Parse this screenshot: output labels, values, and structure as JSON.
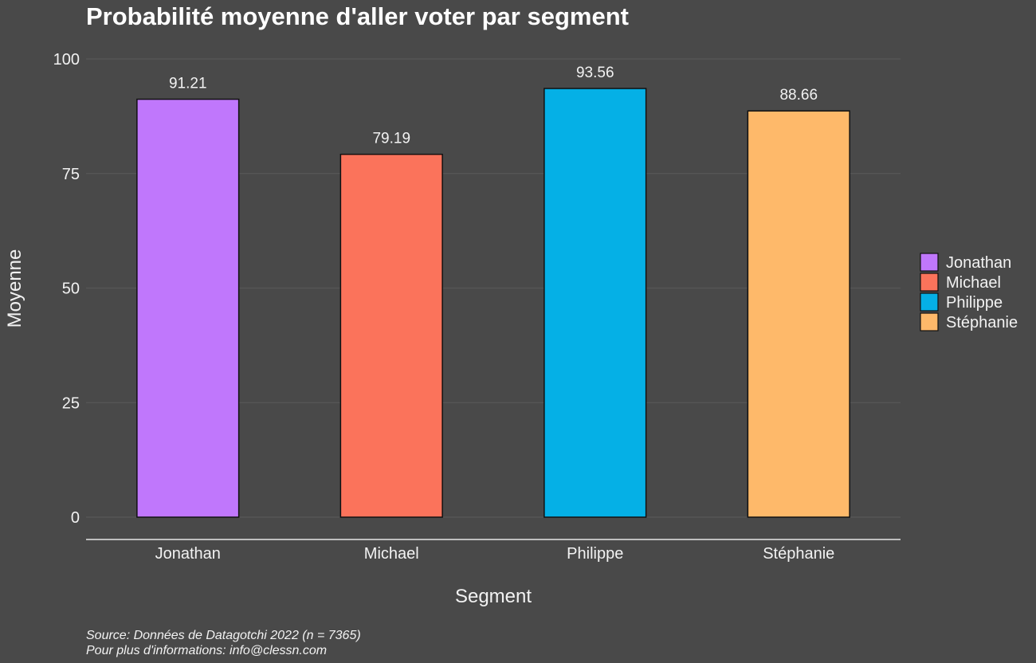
{
  "chart_data": {
    "type": "bar",
    "title": "Probabilité moyenne d'aller voter par segment",
    "xlabel": "Segment",
    "ylabel": "Moyenne",
    "categories": [
      "Jonathan",
      "Michael",
      "Philippe",
      "Stéphanie"
    ],
    "values": [
      91.21,
      79.19,
      93.56,
      88.66
    ],
    "data_labels": [
      "91.21",
      "79.19",
      "93.56",
      "88.66"
    ],
    "colors": [
      "#C077FC",
      "#FB735B",
      "#05B0E6",
      "#FEB96A"
    ],
    "ylim": [
      0,
      100
    ],
    "yticks": [
      0,
      25,
      50,
      75,
      100
    ],
    "grid": true,
    "legend": {
      "placement": "right",
      "entries": [
        "Jonathan",
        "Michael",
        "Philippe",
        "Stéphanie"
      ]
    }
  },
  "caption": {
    "line1": "Source: Données de Datagotchi 2022 (n = 7365)",
    "line2": "Pour plus d'informations: info@clessn.com"
  },
  "theme": {
    "background": "#494949",
    "bar_outline": "#111111",
    "axis_line": "#e6e6e6"
  }
}
